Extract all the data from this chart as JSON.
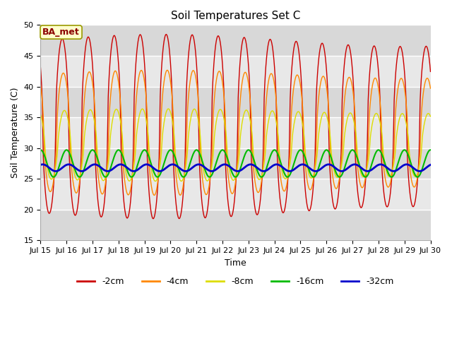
{
  "title": "Soil Temperatures Set C",
  "xlabel": "Time",
  "ylabel": "Soil Temperature (C)",
  "ylim": [
    15,
    50
  ],
  "yticks": [
    15,
    20,
    25,
    30,
    35,
    40,
    45,
    50
  ],
  "xtick_labels": [
    "Jul 15",
    "Jul 16",
    "Jul 17",
    "Jul 18",
    "Jul 19",
    "Jul 20",
    "Jul 21",
    "Jul 22",
    "Jul 23",
    "Jul 24",
    "Jul 25",
    "Jul 26",
    "Jul 27",
    "Jul 28",
    "Jul 29",
    "Jul 30"
  ],
  "series": [
    {
      "label": "-2cm",
      "color": "#cc0000",
      "lw": 1.0
    },
    {
      "label": "-4cm",
      "color": "#ff8800",
      "lw": 1.0
    },
    {
      "label": "-8cm",
      "color": "#dddd00",
      "lw": 1.0
    },
    {
      "label": "-16cm",
      "color": "#00bb00",
      "lw": 1.5
    },
    {
      "label": "-32cm",
      "color": "#0000cc",
      "lw": 2.0
    }
  ],
  "fig_bg_color": "#ffffff",
  "plot_bg_color": "#e8e8e8",
  "title_fontsize": 11,
  "axis_label_fontsize": 9,
  "tick_fontsize": 8,
  "legend_fontsize": 9,
  "annotation_text": "BA_met",
  "annotation_fg": "#8b0000",
  "annotation_bg": "#ffffcc",
  "annotation_border": "#999900"
}
